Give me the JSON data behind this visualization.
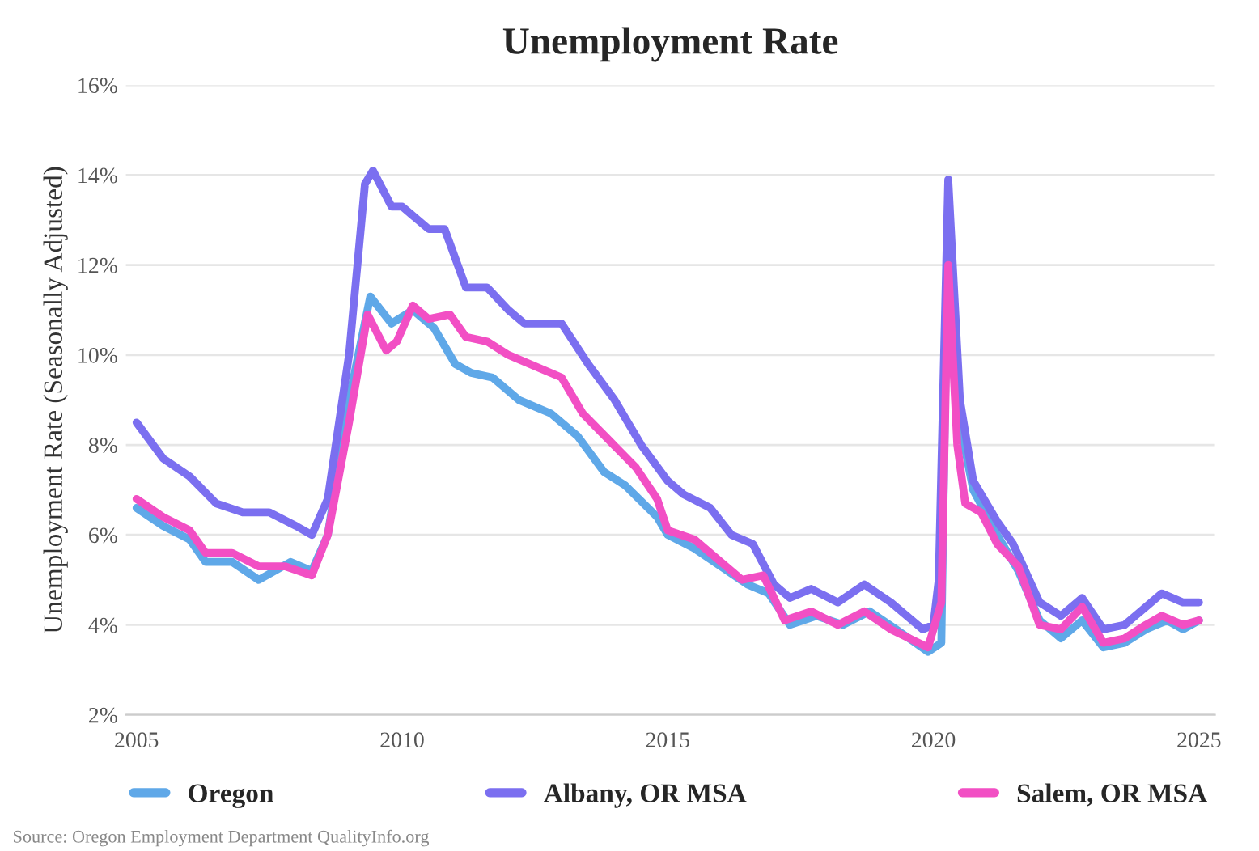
{
  "chart_data": {
    "type": "line",
    "title": "Unemployment Rate",
    "ylabel": "Unemployment Rate (Seasonally Adjusted)",
    "xlim": [
      2004.8,
      2025.3
    ],
    "xticks": [
      2005,
      2010,
      2015,
      2020,
      2025
    ],
    "ylim": [
      2,
      16
    ],
    "yticks": [
      {
        "value": 2,
        "label": "2%"
      },
      {
        "value": 4,
        "label": "4%"
      },
      {
        "value": 6,
        "label": "6%"
      },
      {
        "value": 8,
        "label": "8%"
      },
      {
        "value": 10,
        "label": "10%"
      },
      {
        "value": 12,
        "label": "12%"
      },
      {
        "value": 14,
        "label": "14%"
      },
      {
        "value": 16,
        "label": "16%"
      }
    ],
    "grid": "y",
    "legend": "bottom",
    "marker": "none",
    "line_style": "solid",
    "annotations": [
      "Source: Oregon Employment Department QualityInfo.org"
    ],
    "series": [
      {
        "name": "Oregon",
        "color": "#5fa8e8",
        "x": [
          2005.0,
          2005.5,
          2006.0,
          2006.3,
          2006.8,
          2007.3,
          2007.6,
          2007.9,
          2008.3,
          2008.6,
          2009.0,
          2009.4,
          2009.8,
          2010.2,
          2010.6,
          2011.0,
          2011.3,
          2011.7,
          2012.2,
          2012.8,
          2013.3,
          2013.8,
          2014.2,
          2014.8,
          2015.0,
          2015.5,
          2016.0,
          2016.5,
          2016.9,
          2017.3,
          2017.8,
          2018.3,
          2018.8,
          2019.3,
          2019.9,
          2020.15,
          2020.28,
          2020.5,
          2020.75,
          2021.2,
          2021.6,
          2022.0,
          2022.4,
          2022.8,
          2023.2,
          2023.6,
          2024.0,
          2024.4,
          2024.7,
          2025.0
        ],
        "values": [
          6.6,
          6.2,
          5.9,
          5.4,
          5.4,
          5.0,
          5.2,
          5.4,
          5.2,
          6.0,
          9.0,
          11.3,
          10.7,
          11.0,
          10.6,
          9.8,
          9.6,
          9.5,
          9.0,
          8.7,
          8.2,
          7.4,
          7.1,
          6.4,
          6.0,
          5.7,
          5.3,
          4.9,
          4.7,
          4.0,
          4.2,
          4.0,
          4.3,
          3.9,
          3.4,
          3.6,
          13.5,
          8.5,
          7.0,
          6.0,
          5.2,
          4.1,
          3.7,
          4.1,
          3.5,
          3.6,
          3.9,
          4.1,
          3.9,
          4.1
        ]
      },
      {
        "name": "Albany, OR MSA",
        "color": "#7b6ff0",
        "x": [
          2005.0,
          2005.5,
          2006.0,
          2006.5,
          2007.0,
          2007.5,
          2008.0,
          2008.3,
          2008.6,
          2009.0,
          2009.3,
          2009.45,
          2009.8,
          2010.0,
          2010.2,
          2010.5,
          2010.8,
          2011.2,
          2011.6,
          2012.0,
          2012.3,
          2013.0,
          2013.5,
          2014.0,
          2014.5,
          2015.0,
          2015.3,
          2015.8,
          2016.2,
          2016.6,
          2017.0,
          2017.3,
          2017.7,
          2018.2,
          2018.7,
          2019.2,
          2019.8,
          2020.0,
          2020.1,
          2020.28,
          2020.5,
          2020.75,
          2021.2,
          2021.5,
          2022.0,
          2022.4,
          2022.8,
          2023.2,
          2023.6,
          2024.0,
          2024.3,
          2024.7,
          2025.0
        ],
        "values": [
          8.5,
          7.7,
          7.3,
          6.7,
          6.5,
          6.5,
          6.2,
          6.0,
          6.8,
          10.0,
          13.8,
          14.1,
          13.3,
          13.3,
          13.1,
          12.8,
          12.8,
          11.5,
          11.5,
          11.0,
          10.7,
          10.7,
          9.8,
          9.0,
          8.0,
          7.2,
          6.9,
          6.6,
          6.0,
          5.8,
          4.9,
          4.6,
          4.8,
          4.5,
          4.9,
          4.5,
          3.9,
          4.0,
          5.0,
          13.9,
          9.0,
          7.2,
          6.3,
          5.8,
          4.5,
          4.2,
          4.6,
          3.9,
          4.0,
          4.4,
          4.7,
          4.5,
          4.5
        ]
      },
      {
        "name": "Salem, OR MSA",
        "color": "#f24fc4",
        "x": [
          2005.0,
          2005.5,
          2006.0,
          2006.3,
          2006.8,
          2007.3,
          2007.8,
          2008.3,
          2008.6,
          2009.0,
          2009.35,
          2009.7,
          2009.9,
          2010.2,
          2010.5,
          2010.9,
          2011.2,
          2011.6,
          2012.0,
          2012.6,
          2013.0,
          2013.4,
          2013.9,
          2014.4,
          2014.8,
          2015.0,
          2015.5,
          2016.0,
          2016.4,
          2016.8,
          2017.2,
          2017.7,
          2018.2,
          2018.7,
          2019.2,
          2019.9,
          2020.15,
          2020.28,
          2020.45,
          2020.6,
          2020.9,
          2021.2,
          2021.6,
          2022.0,
          2022.4,
          2022.8,
          2023.2,
          2023.6,
          2024.0,
          2024.3,
          2024.7,
          2025.0
        ],
        "values": [
          6.8,
          6.4,
          6.1,
          5.6,
          5.6,
          5.3,
          5.3,
          5.1,
          6.0,
          8.5,
          10.9,
          10.1,
          10.3,
          11.1,
          10.8,
          10.9,
          10.4,
          10.3,
          10.0,
          9.7,
          9.5,
          8.7,
          8.1,
          7.5,
          6.8,
          6.1,
          5.9,
          5.4,
          5.0,
          5.1,
          4.1,
          4.3,
          4.0,
          4.3,
          3.9,
          3.5,
          4.5,
          12.0,
          8.0,
          6.7,
          6.5,
          5.8,
          5.3,
          4.0,
          3.9,
          4.4,
          3.6,
          3.7,
          4.0,
          4.2,
          4.0,
          4.1
        ]
      }
    ]
  }
}
